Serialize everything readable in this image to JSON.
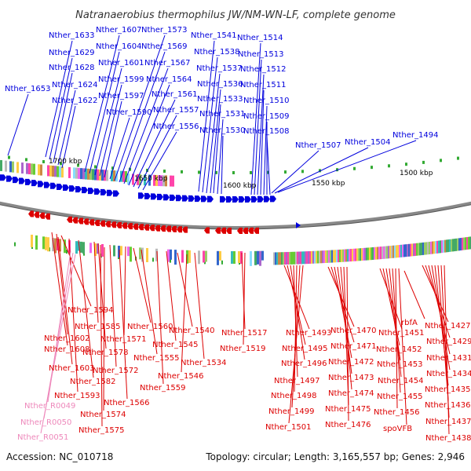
{
  "title": "Natranaerobius thermophilus JW/NM-WN-LF, complete genome",
  "accession_text": "Accession: NC_010718",
  "summary_text": "Topology: circular; Length: 3,165,557 bp; Genes: 2,946",
  "position_labels": [
    "1700 kbp",
    "1650 kbp",
    "1600 kbp",
    "1550 kbp",
    "1500 kbp"
  ],
  "colors": {
    "forward_strand": "#0000dd",
    "reverse_strand": "#dd0000",
    "rna_label": "#ee88bb",
    "backbone": "#888888",
    "tick_mark": "#33aa33",
    "cog_palette": [
      "#ff44aa",
      "#33bbbb",
      "#99cc66",
      "#aa66cc",
      "#ffcc44",
      "#66cc33",
      "#3366cc",
      "#cc8844",
      "#ee66ee",
      "#88ddff",
      "#bbbbbb",
      "#44aa66"
    ]
  },
  "forward_gene_labels": [
    "Nther_1653",
    "Nther_1633",
    "Nther_1629",
    "Nther_1628",
    "Nther_1624",
    "Nther_1622",
    "Nther_1607",
    "Nther_1604",
    "Nther_1601",
    "Nther_1599",
    "Nther_1597",
    "Nther_1590",
    "Nther_1573",
    "Nther_1569",
    "Nther_1567",
    "Nther_1564",
    "Nther_1561",
    "Nther_1557",
    "Nther_1556",
    "Nther_1541",
    "Nther_1538",
    "Nther_1537",
    "Nther_1536",
    "Nther_1533",
    "Nther_1531",
    "Nther_1530",
    "Nther_1514",
    "Nther_1513",
    "Nther_1512",
    "Nther_1511",
    "Nther_1510",
    "Nther_1509",
    "Nther_1508",
    "Nther_1507",
    "Nther_1504",
    "Nther_1494"
  ],
  "reverse_gene_labels": [
    "Nther_1594",
    "Nther_1602",
    "Nther_1608",
    "Nther_1603",
    "Nther_1582",
    "Nther_1593",
    "Nther_1585",
    "Nther_1578",
    "Nther_1572",
    "Nther_1574",
    "Nther_1575",
    "Nther_1560",
    "Nther_1571",
    "Nther_1555",
    "Nther_1559",
    "Nther_1566",
    "Nther_1540",
    "Nther_1545",
    "Nther_1546",
    "Nther_1534",
    "Nther_1517",
    "Nther_1519",
    "Nther_1493",
    "Nther_1495",
    "Nther_1496",
    "Nther_1497",
    "Nther_1498",
    "Nther_1499",
    "Nther_1501",
    "Nther_1470",
    "Nther_1471",
    "Nther_1472",
    "Nther_1473",
    "Nther_1474",
    "Nther_1475",
    "Nther_1476",
    "rbfA",
    "Nther_1451",
    "Nther_1452",
    "Nther_1453",
    "Nther_1454",
    "Nther_1455",
    "Nther_1456",
    "spoVFB",
    "Nther_1427",
    "Nther_1429",
    "Nther_1431",
    "Nther_1434",
    "Nther_1435",
    "Nther_1436",
    "Nther_1437",
    "Nther_1438"
  ],
  "rna_gene_labels": [
    "Nther_R0049",
    "Nther_R0050",
    "Nther_R0051"
  ]
}
